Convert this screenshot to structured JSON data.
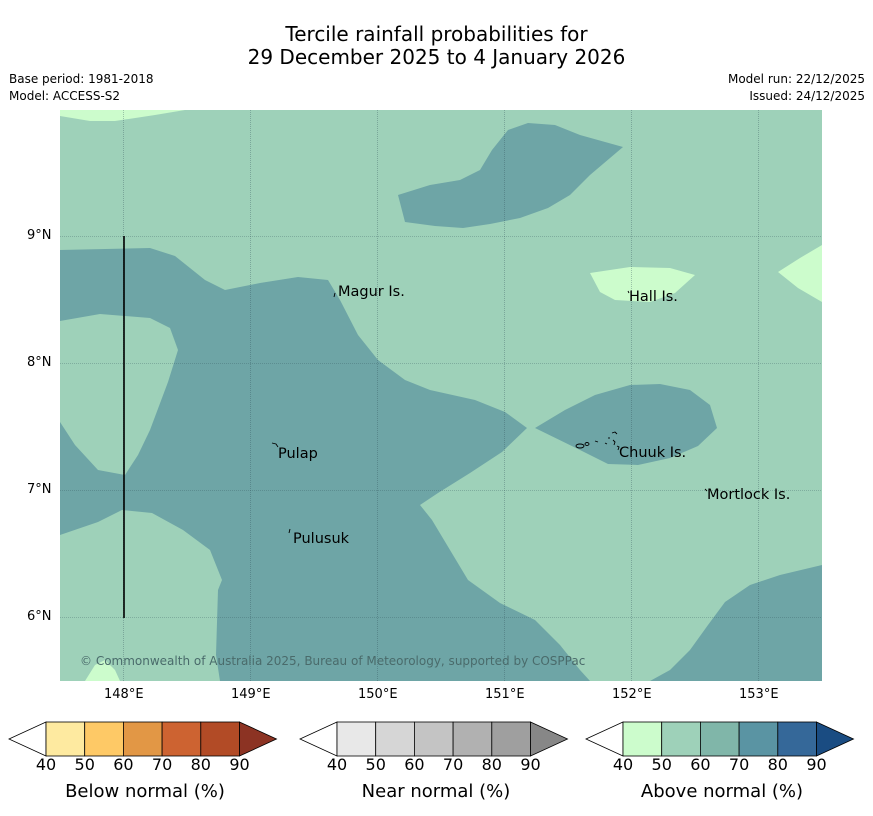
{
  "title": {
    "line1": "Tercile rainfall probabilities for",
    "line2": "29 December 2025 to 4 January 2026"
  },
  "info": {
    "base_period": "Base period: 1981-2018",
    "model": "Model: ACCESS-S2",
    "model_run": "Model run: 22/12/2025",
    "issued": "Issued: 24/12/2025"
  },
  "map": {
    "latitude_labels": [
      "9°N",
      "8°N",
      "7°N",
      "6°N"
    ],
    "longitude_labels": [
      "148°E",
      "149°E",
      "150°E",
      "151°E",
      "152°E",
      "153°E"
    ],
    "places": [
      "Magur Is.",
      "Hall Is.",
      "Pulap",
      "Chuuk Is.",
      "Mortlock Is.",
      "Pulusuk"
    ],
    "copyright": "© Commonwealth of Australia 2025, Bureau of Meteorology, supported by COSPPac",
    "colors": {
      "above_50": "#9ed1b9",
      "above_70": "#6ea5a6",
      "above_40": "#ccfccc"
    }
  },
  "colorbars": [
    {
      "label": "Below normal (%)",
      "ticks": [
        "40",
        "50",
        "60",
        "70",
        "80",
        "90"
      ],
      "colors": [
        "#ffffff",
        "#feeaa0",
        "#fec966",
        "#e29745",
        "#cd6331",
        "#b24b26",
        "#8c3323"
      ]
    },
    {
      "label": "Near normal (%)",
      "ticks": [
        "40",
        "50",
        "60",
        "70",
        "80",
        "90"
      ],
      "colors": [
        "#ffffff",
        "#e8e8e8",
        "#d6d6d6",
        "#c4c4c4",
        "#b1b1b1",
        "#9f9f9f",
        "#878787"
      ]
    },
    {
      "label": "Above normal (%)",
      "ticks": [
        "40",
        "50",
        "60",
        "70",
        "80",
        "90"
      ],
      "colors": [
        "#ffffff",
        "#ccfccc",
        "#9ed1b9",
        "#80b6a9",
        "#5a94a3",
        "#356899",
        "#1a4c82"
      ]
    }
  ]
}
